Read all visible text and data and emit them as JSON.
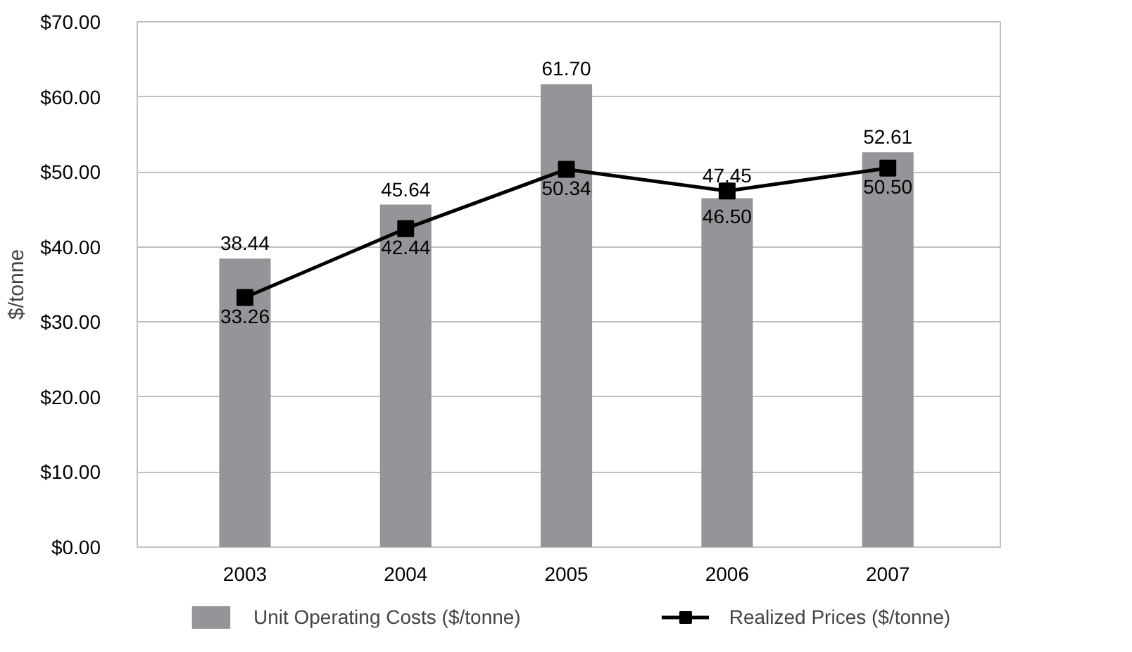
{
  "chart_data": {
    "type": "bar",
    "ylabel": "$/tonne",
    "categories": [
      "2003",
      "2004",
      "2005",
      "2006",
      "2007"
    ],
    "series": [
      {
        "name": "Unit Operating Costs ($/tonne)",
        "color": "#939598",
        "values": [
          38.44,
          45.64,
          61.7,
          46.5,
          52.61
        ],
        "value_labels": [
          "38.44",
          "45.64",
          "61.70",
          "46.50",
          "52.61"
        ]
      },
      {
        "name": "Realized Prices ($/tonne)",
        "type": "line",
        "color": "#000000",
        "marker": "square",
        "values": [
          33.26,
          42.44,
          50.34,
          47.45,
          50.5
        ],
        "value_labels": [
          "33.26",
          "42.44",
          "50.34",
          "47.45",
          "50.50"
        ]
      }
    ],
    "ylim": [
      0,
      70
    ],
    "yticks": [
      {
        "value": 0,
        "label": "$0.00"
      },
      {
        "value": 10,
        "label": "$10.00"
      },
      {
        "value": 20,
        "label": "$20.00"
      },
      {
        "value": 30,
        "label": "$30.00"
      },
      {
        "value": 40,
        "label": "$40.00"
      },
      {
        "value": 50,
        "label": "$50.00"
      },
      {
        "value": 60,
        "label": "$60.00"
      },
      {
        "value": 70,
        "label": "$70.00"
      }
    ],
    "grid": "y",
    "legend": "bottom"
  }
}
